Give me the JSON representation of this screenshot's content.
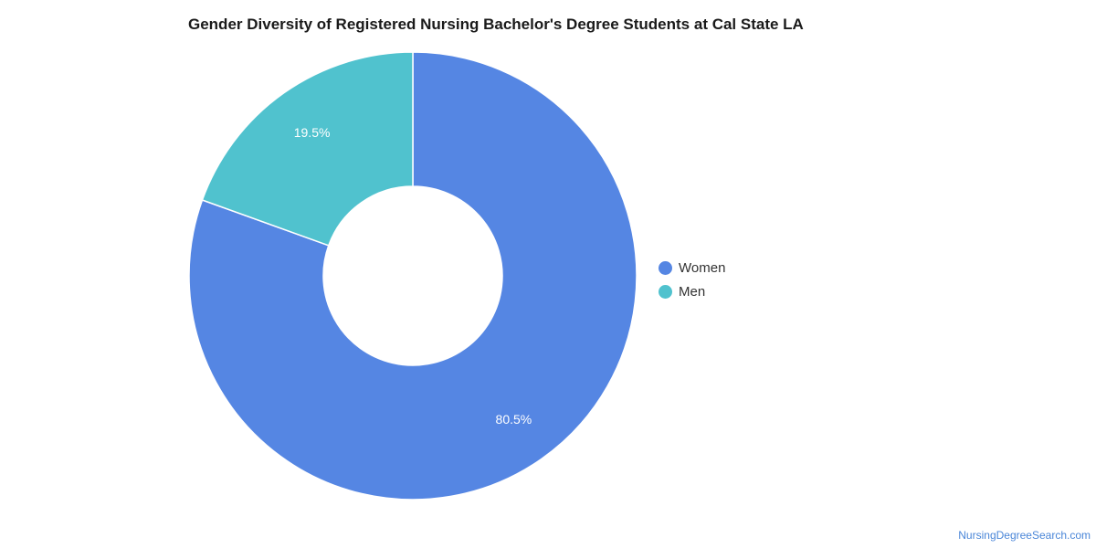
{
  "title": "Gender Diversity of Registered Nursing Bachelor's Degree Students at Cal State LA",
  "chart_data": {
    "type": "pie",
    "donut": true,
    "categories": [
      "Women",
      "Men"
    ],
    "values": [
      80.5,
      19.5
    ],
    "labels": [
      "80.5%",
      "19.5%"
    ],
    "colors": [
      "#5586e3",
      "#50c2ce"
    ],
    "legend_position": "right"
  },
  "legend": {
    "items": [
      {
        "label": "Women",
        "color": "#5586e3"
      },
      {
        "label": "Men",
        "color": "#50c2ce"
      }
    ]
  },
  "source": "NursingDegreeSearch.com"
}
